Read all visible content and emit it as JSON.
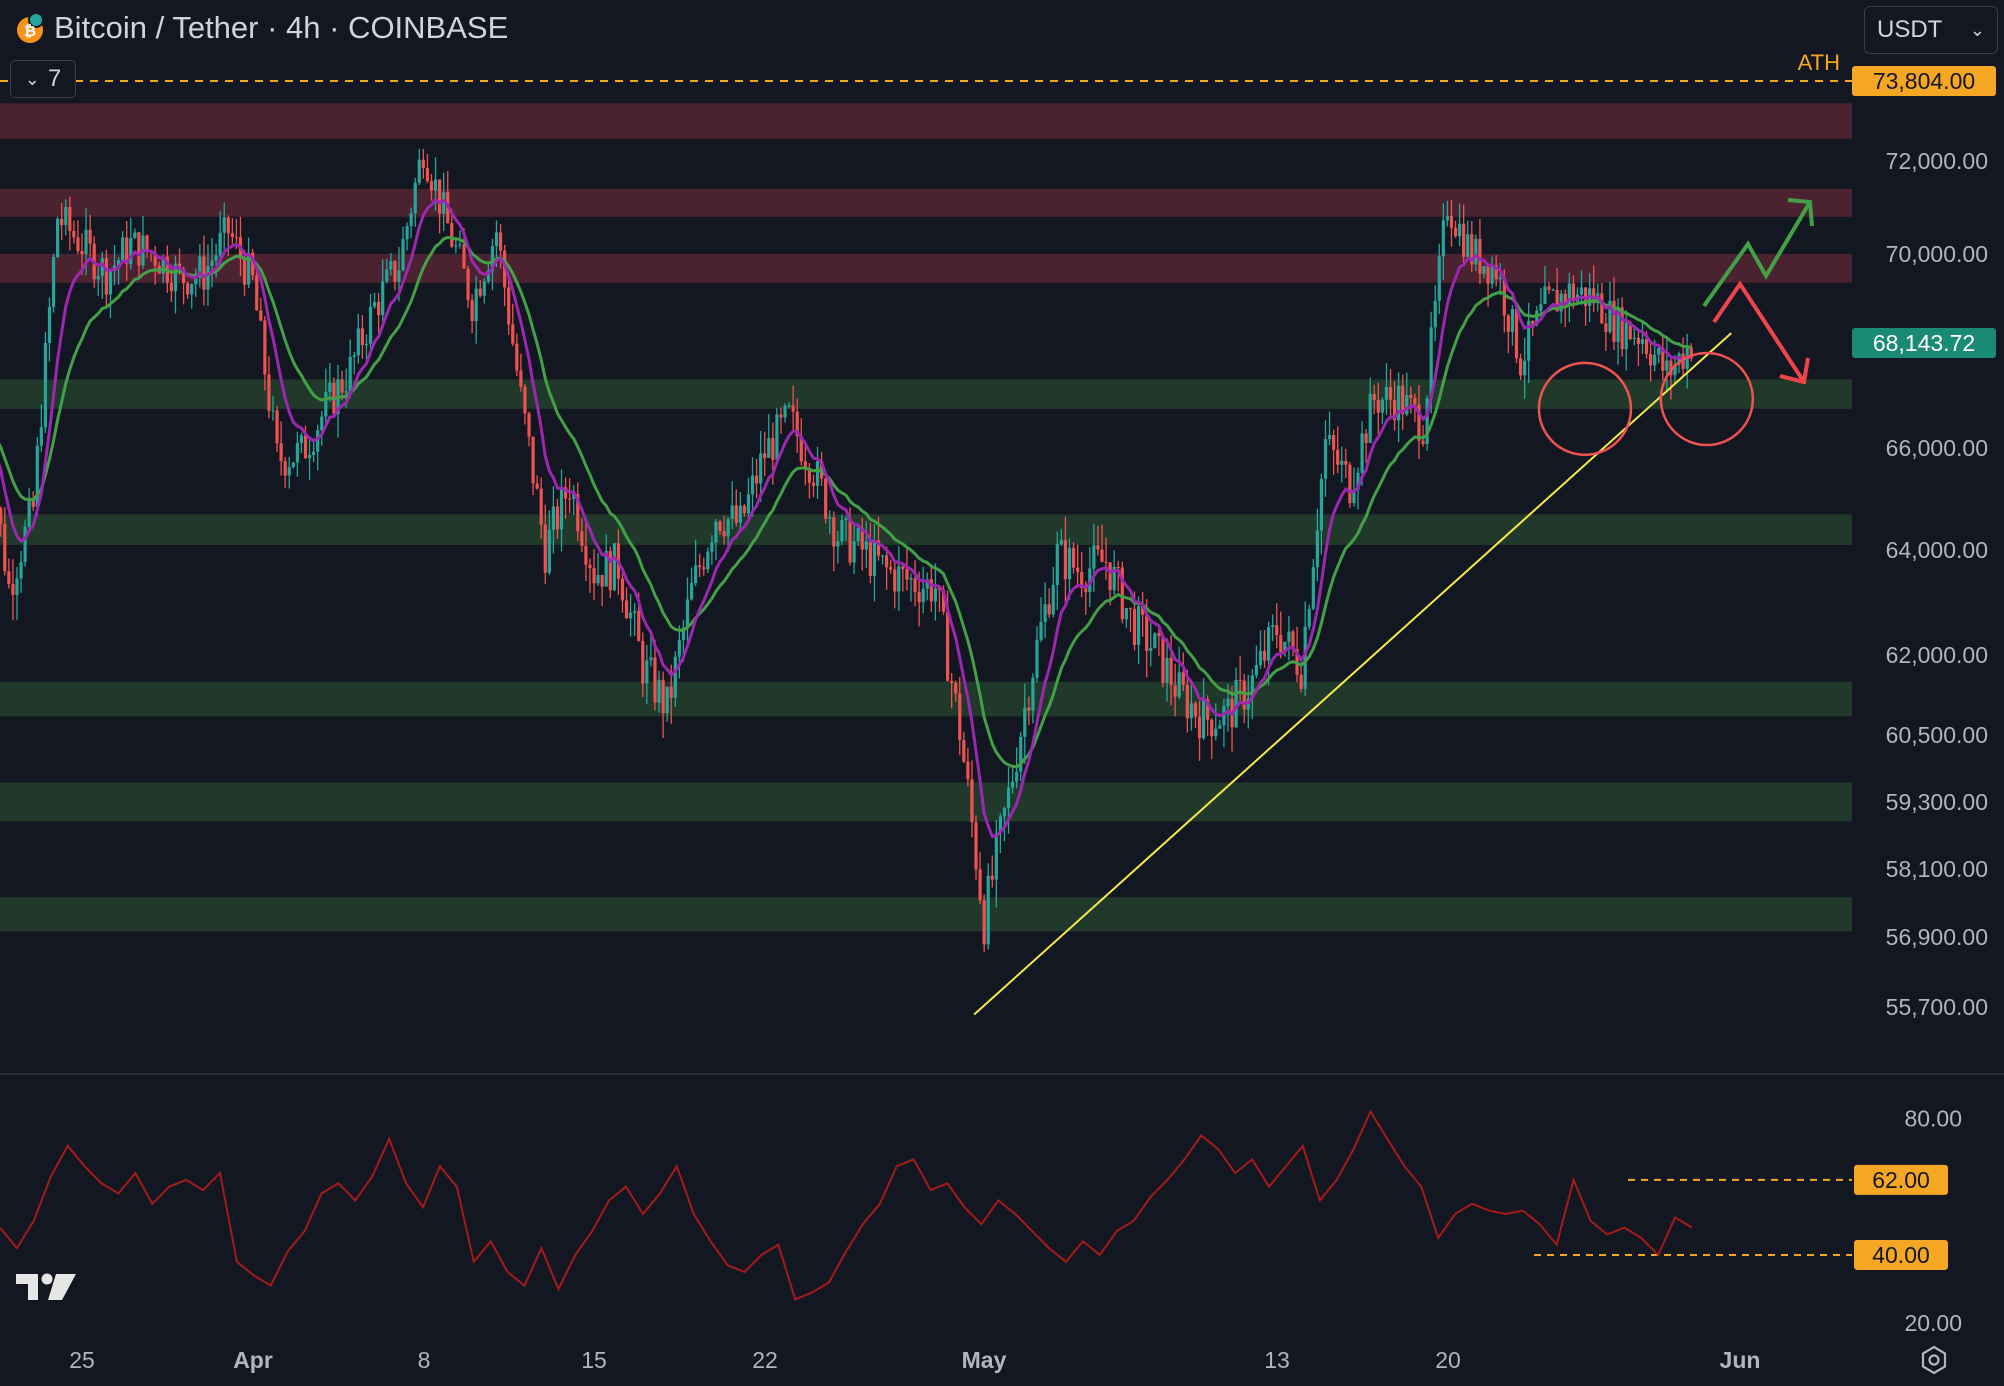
{
  "header": {
    "title": "Bitcoin / Tether · 4h · COINBASE",
    "indicator_count": "7",
    "currency": "USDT"
  },
  "colors": {
    "background": "#131722",
    "bull": "#26a69a",
    "bear": "#ef5350",
    "resistance_zone": "#4a2230",
    "support_zone": "#20392a",
    "ema_fast": "#9c27b0",
    "ema_slow": "#43a047",
    "trendline": "#f5e94b",
    "rsi": "#a51a1a",
    "accent": "#f5a623",
    "current_price_bg": "#1a8a74"
  },
  "chart_data": [
    {
      "type": "candlestick",
      "symbol": "Bitcoin / Tether",
      "interval": "4h",
      "exchange": "COINBASE",
      "x_ticks": [
        "25",
        "Apr",
        "8",
        "15",
        "22",
        "May",
        "13",
        "20",
        "Jun"
      ],
      "y_ticks": [
        "72,000.00",
        "70,000.00",
        "66,000.00",
        "64,000.00",
        "62,000.00",
        "60,500.00",
        "59,300.00",
        "58,100.00",
        "56,900.00",
        "55,700.00"
      ],
      "ylim": [
        55000,
        74200
      ],
      "price_path": [
        {
          "x": "Mar 21",
          "y": 66500
        },
        {
          "x": "Mar 22",
          "y": 63300
        },
        {
          "x": "Mar 23",
          "y": 64800
        },
        {
          "x": "Mar 24",
          "y": 70800
        },
        {
          "x": "Mar 25",
          "y": 70200
        },
        {
          "x": "Mar 26",
          "y": 69600
        },
        {
          "x": "Mar 27",
          "y": 70200
        },
        {
          "x": "Mar 28",
          "y": 70000
        },
        {
          "x": "Mar 29",
          "y": 69500
        },
        {
          "x": "Mar 30",
          "y": 69600
        },
        {
          "x": "Mar 31",
          "y": 70500
        },
        {
          "x": "Apr 1",
          "y": 69400
        },
        {
          "x": "Apr 2",
          "y": 65800
        },
        {
          "x": "Apr 3",
          "y": 65900
        },
        {
          "x": "Apr 4",
          "y": 66800
        },
        {
          "x": "Apr 5",
          "y": 67600
        },
        {
          "x": "Apr 6",
          "y": 68900
        },
        {
          "x": "Apr 7",
          "y": 69800
        },
        {
          "x": "Apr 8",
          "y": 72300
        },
        {
          "x": "Apr 9",
          "y": 70600
        },
        {
          "x": "Apr 10",
          "y": 69000
        },
        {
          "x": "Apr 11",
          "y": 70500
        },
        {
          "x": "Apr 12",
          "y": 67000
        },
        {
          "x": "Apr 13",
          "y": 64000
        },
        {
          "x": "Apr 14",
          "y": 65300
        },
        {
          "x": "Apr 15",
          "y": 63600
        },
        {
          "x": "Apr 16",
          "y": 63700
        },
        {
          "x": "Apr 17",
          "y": 61800
        },
        {
          "x": "Apr 18",
          "y": 61000
        },
        {
          "x": "Apr 19",
          "y": 63200
        },
        {
          "x": "Apr 20",
          "y": 64700
        },
        {
          "x": "Apr 21",
          "y": 64500
        },
        {
          "x": "Apr 22",
          "y": 65900
        },
        {
          "x": "Apr 23",
          "y": 66600
        },
        {
          "x": "Apr 24",
          "y": 65600
        },
        {
          "x": "Apr 25",
          "y": 64300
        },
        {
          "x": "Apr 26",
          "y": 64000
        },
        {
          "x": "Apr 27",
          "y": 63600
        },
        {
          "x": "Apr 28",
          "y": 63400
        },
        {
          "x": "Apr 29",
          "y": 63300
        },
        {
          "x": "Apr 30",
          "y": 60600
        },
        {
          "x": "May 1",
          "y": 57200
        },
        {
          "x": "May 2",
          "y": 59400
        },
        {
          "x": "May 3",
          "y": 61800
        },
        {
          "x": "May 4",
          "y": 63900
        },
        {
          "x": "May 5",
          "y": 63600
        },
        {
          "x": "May 6",
          "y": 63800
        },
        {
          "x": "May 7",
          "y": 62700
        },
        {
          "x": "May 8",
          "y": 62100
        },
        {
          "x": "May 9",
          "y": 61300
        },
        {
          "x": "May 10",
          "y": 60800
        },
        {
          "x": "May 11",
          "y": 60900
        },
        {
          "x": "May 12",
          "y": 61500
        },
        {
          "x": "May 13",
          "y": 62500
        },
        {
          "x": "May 14",
          "y": 61800
        },
        {
          "x": "May 15",
          "y": 66100
        },
        {
          "x": "May 16",
          "y": 65300
        },
        {
          "x": "May 17",
          "y": 67000
        },
        {
          "x": "May 18",
          "y": 67000
        },
        {
          "x": "May 19",
          "y": 66500
        },
        {
          "x": "May 20",
          "y": 71100
        },
        {
          "x": "May 21",
          "y": 70000
        },
        {
          "x": "May 22",
          "y": 69700
        },
        {
          "x": "May 23",
          "y": 67800
        },
        {
          "x": "May 24",
          "y": 68900
        },
        {
          "x": "May 25",
          "y": 69200
        },
        {
          "x": "May 26",
          "y": 69100
        },
        {
          "x": "May 27",
          "y": 68500
        },
        {
          "x": "May 28",
          "y": 68300
        },
        {
          "x": "May 29",
          "y": 67500
        },
        {
          "x": "May 30",
          "y": 68144
        }
      ],
      "price_levels": {
        "ath": {
          "label": "ATH",
          "value": "73,804.00"
        },
        "current": {
          "value": "68,143.72"
        }
      },
      "resistance_zones": [
        [
          72500,
          73300
        ],
        [
          70800,
          71400
        ],
        [
          69400,
          70000
        ]
      ],
      "support_zones": [
        [
          66800,
          67400
        ],
        [
          64100,
          64700
        ],
        [
          60850,
          61500
        ],
        [
          58950,
          59650
        ],
        [
          57000,
          57600
        ]
      ],
      "trendline": {
        "from": {
          "x": "May 1",
          "y": 56000
        },
        "to": {
          "x": "May 30",
          "y": 68350
        }
      },
      "annotations": [
        "circle May 24 low",
        "circle May 29 low",
        "green up arrow",
        "red down arrow"
      ],
      "grid": false
    },
    {
      "type": "line",
      "indicator": "RSI",
      "y_ticks": [
        "80.00",
        "20.00"
      ],
      "levels": [
        "62.00",
        "40.00"
      ],
      "ylim": [
        18,
        86
      ],
      "values": [
        48,
        42,
        50,
        63,
        72,
        66,
        61,
        58,
        64,
        55,
        60,
        62,
        59,
        64,
        38,
        34,
        31,
        41,
        47,
        58,
        61,
        56,
        63,
        74,
        61,
        54,
        66,
        60,
        38,
        44,
        35,
        31,
        42,
        30,
        40,
        47,
        56,
        60,
        52,
        58,
        66,
        52,
        44,
        37,
        35,
        40,
        43,
        27,
        29,
        32,
        41,
        49,
        55,
        66,
        68,
        59,
        61,
        54,
        49,
        56,
        52,
        47,
        42,
        38,
        44,
        40,
        47,
        50,
        57,
        62,
        68,
        75,
        71,
        64,
        68,
        60,
        66,
        72,
        56,
        62,
        71,
        82,
        74,
        66,
        60,
        45,
        52,
        55,
        53,
        52,
        53,
        49,
        43,
        62,
        50,
        46,
        48,
        45,
        40,
        51,
        48
      ]
    }
  ]
}
